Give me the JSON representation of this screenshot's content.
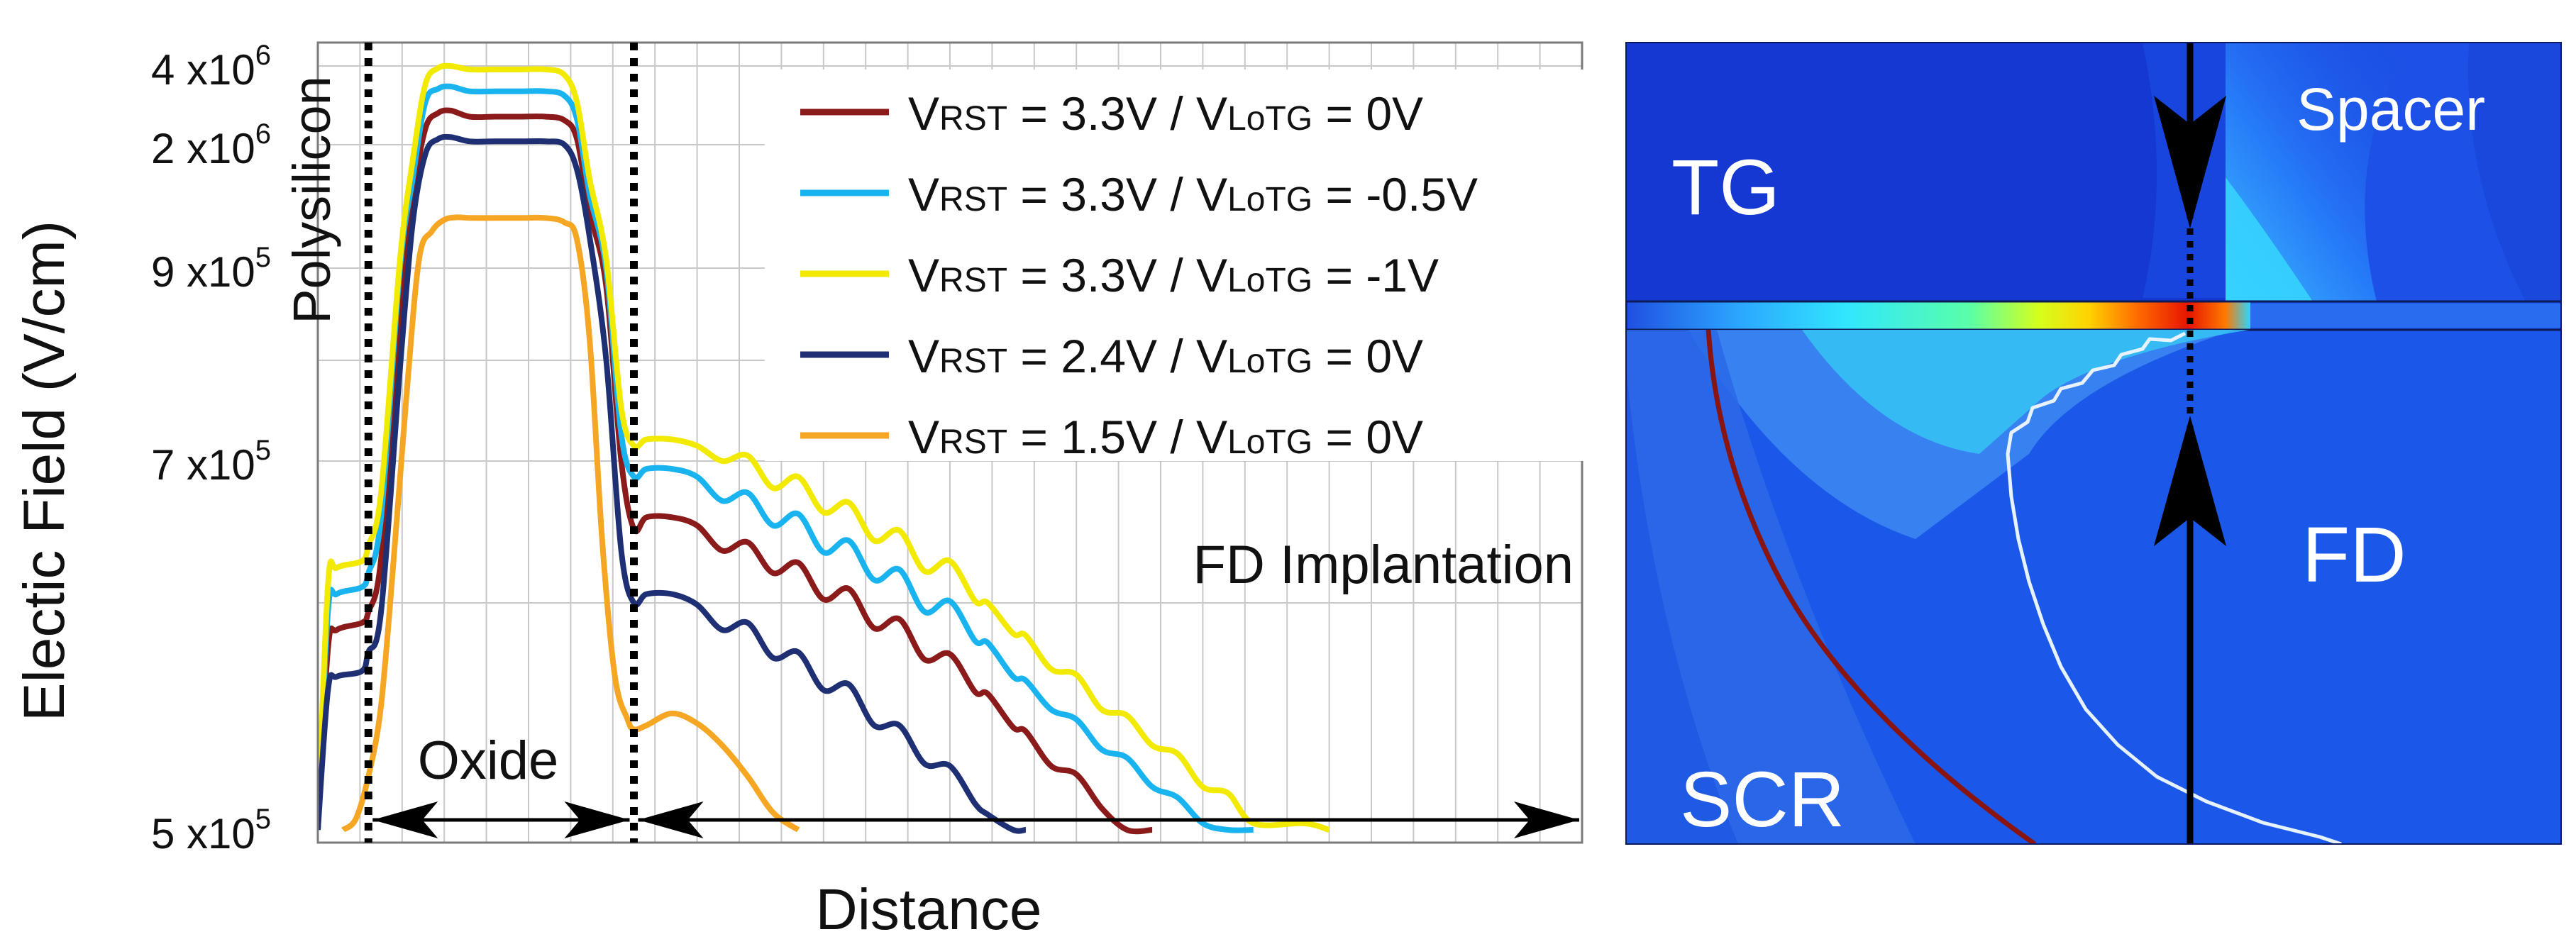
{
  "chart_data": {
    "type": "line",
    "xlabel": "Distance",
    "ylabel": "Electic Field (V/cm)",
    "y_ticks": [
      {
        "base": "4 x10",
        "exp": "6",
        "value": 4000000
      },
      {
        "base": "2 x10",
        "exp": "6",
        "value": 2000000
      },
      {
        "base": "9 x10",
        "exp": "5",
        "value": 900000
      },
      {
        "base": "7 x10",
        "exp": "5",
        "value": 700000
      },
      {
        "base": "5 x10",
        "exp": "5",
        "value": 500000
      }
    ],
    "x_domain": [
      0,
      100
    ],
    "grid": true,
    "legend_position": "top-right",
    "region_labels": {
      "polysilicon": "Polysilicon",
      "oxide": "Oxide",
      "fd_implantation": "FD Implantation"
    },
    "boundaries_x": [
      4,
      25
    ],
    "series": [
      {
        "name": "VRST = 3.3V / VLoTG = 0V",
        "legend": {
          "v1": "V",
          "s1": "RST",
          "mid": " = 3.3V / V",
          "s2": "LoTG",
          "end": " = 0V"
        },
        "color": "#8b1a1a",
        "x": [
          0,
          0.8,
          1.5,
          3.5,
          4,
          5,
          6.5,
          7.5,
          8.5,
          9.5,
          10.5,
          12,
          14,
          16,
          18,
          19.5,
          20.5,
          21.5,
          22.8,
          24,
          25,
          26,
          28,
          30,
          32,
          34,
          36,
          38,
          40,
          42,
          44,
          46,
          48,
          50,
          52,
          53,
          55,
          56,
          58,
          60,
          62,
          64,
          66
        ],
        "y": [
          500000,
          590000,
          600000,
          604000,
          610000,
          640000,
          840000,
          1400000,
          2300000,
          2640000,
          2700000,
          2560000,
          2560000,
          2560000,
          2560000,
          2480000,
          2100000,
          1300000,
          880000,
          700000,
          658000,
          665000,
          665000,
          660000,
          645000,
          650000,
          632000,
          638000,
          617000,
          623000,
          601000,
          606000,
          584000,
          587000,
          567000,
          566000,
          549000,
          547000,
          530000,
          526000,
          510000,
          500000,
          500000
        ]
      },
      {
        "name": "VRST = 3.3V / VLoTG = -0.5V",
        "legend": {
          "v1": "V",
          "s1": "RST",
          "mid": " = 3.3V / V",
          "s2": "LoTG",
          "end": " = -0.5V"
        },
        "color": "#19b4f0",
        "x": [
          0,
          0.8,
          1.5,
          3.5,
          4,
          5,
          6.5,
          7.5,
          8.5,
          9.5,
          10.5,
          12,
          14,
          16,
          18,
          19.5,
          20.5,
          21.5,
          22.8,
          24,
          25,
          26,
          28,
          30,
          32,
          34,
          36,
          38,
          40,
          42,
          44,
          46,
          48,
          50,
          52,
          53,
          55,
          56,
          58,
          60,
          62,
          64,
          66,
          68,
          70,
          72,
          74
        ],
        "y": [
          500000,
          610000,
          620000,
          624000,
          632000,
          665000,
          900000,
          1600000,
          2900000,
          3270000,
          3340000,
          3200000,
          3200000,
          3200000,
          3200000,
          3080000,
          2500000,
          1450000,
          900000,
          725000,
          690000,
          695000,
          695000,
          690000,
          675000,
          680000,
          660000,
          667000,
          644000,
          651000,
          628000,
          634000,
          610000,
          616000,
          594000,
          593000,
          575000,
          573000,
          558000,
          553000,
          538000,
          534000,
          520000,
          515000,
          503000,
          500000,
          500000
        ]
      },
      {
        "name": "VRST = 3.3V / VLoTG = -1V",
        "legend": {
          "v1": "V",
          "s1": "RST",
          "mid": " = 3.3V / V",
          "s2": "LoTG",
          "end": " = -1V"
        },
        "color": "#f2ea00",
        "x": [
          0,
          0.8,
          1.5,
          3.5,
          4,
          5,
          6.5,
          7.5,
          8.5,
          9.5,
          10.5,
          12,
          14,
          16,
          18,
          19.5,
          20.5,
          21.5,
          22.8,
          24,
          25,
          26,
          28,
          30,
          32,
          34,
          36,
          38,
          40,
          42,
          44,
          46,
          48,
          50,
          52,
          53,
          55,
          56,
          58,
          60,
          62,
          64,
          66,
          68,
          70,
          72,
          74,
          78,
          80
        ],
        "y": [
          500000,
          625000,
          635000,
          639000,
          648000,
          680000,
          950000,
          1800000,
          3400000,
          3920000,
          4000000,
          3880000,
          3880000,
          3880000,
          3880000,
          3700000,
          2900000,
          1600000,
          960000,
          750000,
          714000,
          720000,
          720000,
          714000,
          700000,
          705000,
          683000,
          690000,
          668000,
          674000,
          651000,
          657000,
          633000,
          639000,
          616000,
          615000,
          598000,
          597000,
          579000,
          576000,
          558000,
          555000,
          540000,
          536000,
          520000,
          517000,
          503000,
          503000,
          500000
        ]
      },
      {
        "name": "VRST = 2.4V / VLoTG = 0V",
        "legend": {
          "v1": "V",
          "s1": "RST",
          "mid": " = 2.4V / V",
          "s2": "LoTG",
          "end": " = 0V"
        },
        "color": "#1f2f74",
        "x": [
          0,
          0.8,
          1.5,
          3.5,
          4,
          5,
          6.5,
          7.5,
          8.5,
          9.5,
          10.5,
          12,
          14,
          16,
          18,
          19.5,
          20.5,
          21.5,
          22.8,
          24,
          25,
          26,
          28,
          30,
          32,
          34,
          36,
          38,
          40,
          42,
          44,
          46,
          48,
          50,
          52,
          53,
          55,
          56
        ],
        "y": [
          500000,
          568000,
          575000,
          578000,
          588000,
          610000,
          790000,
          1200000,
          1880000,
          2100000,
          2140000,
          2060000,
          2060000,
          2060000,
          2060000,
          2000000,
          1700000,
          1100000,
          800000,
          645000,
          615000,
          620000,
          620000,
          614000,
          600000,
          604000,
          585000,
          588000,
          568000,
          571000,
          550000,
          550000,
          531000,
          530000,
          512000,
          507000,
          500000,
          500000
        ]
      },
      {
        "name": "VRST = 1.5V / VLoTG = 0V",
        "legend": {
          "v1": "V",
          "s1": "RST",
          "mid": " = 1.5V / V",
          "s2": "LoTG",
          "end": " = 0V"
        },
        "color": "#f5a623",
        "x": [
          2,
          3,
          4,
          5,
          6,
          7,
          8,
          9,
          10,
          11,
          12,
          14,
          16,
          18,
          19.5,
          20.5,
          21.5,
          22.5,
          23.5,
          24.5,
          25,
          26,
          28,
          30,
          32,
          34,
          36,
          38
        ],
        "y": [
          500000,
          505000,
          525000,
          560000,
          640000,
          760000,
          950000,
          1140000,
          1230000,
          1250000,
          1245000,
          1245000,
          1245000,
          1245000,
          1210000,
          1080000,
          820000,
          650000,
          575000,
          553000,
          548000,
          550000,
          556000,
          551000,
          540000,
          525000,
          508000,
          500000
        ]
      }
    ]
  },
  "simulation_panel": {
    "labels": {
      "tg": "TG",
      "spacer": "Spacer",
      "fd": "FD",
      "scr": "SCR"
    }
  }
}
